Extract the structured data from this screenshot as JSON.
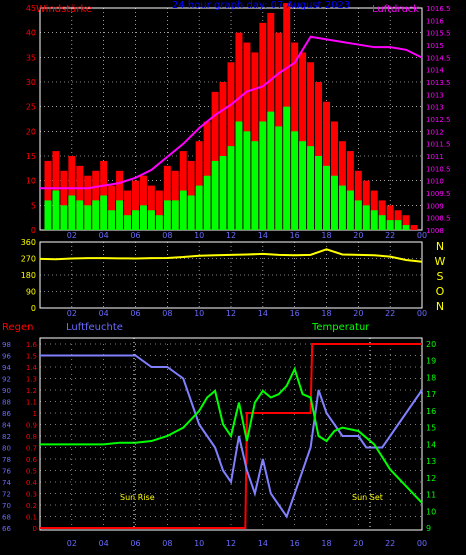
{
  "title": "24 hour graph day: 07 August 2023",
  "colors": {
    "background": "#000000",
    "wind_gust": "#ff0000",
    "wind_avg": "#00ff00",
    "pressure": "#ff00ff",
    "direction": "#ffff00",
    "rain": "#ff0000",
    "humidity": "#8080ff",
    "temperature": "#00ff00",
    "grid": "#ffffff",
    "ticks_left": "#6a6aff",
    "ticks_right_top": "#ff00ff",
    "ticks_right_bottom": "#00ff00",
    "compass": "#ffff00"
  },
  "top": {
    "left_label": "Windstärke",
    "right_label": "Luftdruck",
    "left_ticks": [
      "0",
      "5",
      "10",
      "15",
      "20",
      "25",
      "30",
      "35",
      "40",
      "45"
    ],
    "right_ticks": [
      "1008",
      "1008.5",
      "1009",
      "1009.5",
      "1010",
      "1010.5",
      "1011",
      "1011.5",
      "1012",
      "1012.5",
      "1013",
      "1013",
      "1013.5",
      "1014",
      "1014.5",
      "1015",
      "1015.5",
      "1016",
      "1016.5"
    ]
  },
  "mid": {
    "left_ticks": [
      "0",
      "90",
      "180",
      "270",
      "360"
    ],
    "compass": [
      "N",
      "W",
      "S",
      "O",
      "N"
    ]
  },
  "bottom": {
    "rain_label": "Regen",
    "humidity_label": "Luftfeuchte",
    "temp_label": "Temperatur",
    "hum_ticks": [
      "66",
      "68",
      "70",
      "72",
      "74",
      "76",
      "78",
      "80",
      "82",
      "84",
      "86",
      "88",
      "90",
      "92",
      "94",
      "96",
      "98"
    ],
    "rain_ticks": [
      "0",
      "0.1",
      "0.2",
      "0.3",
      "0.4",
      "0.5",
      "0.6",
      "0.7",
      "0.8",
      "0.9",
      "1",
      "1.1",
      "1.2",
      "1.3",
      "1.4",
      "1.5",
      "1.6"
    ],
    "temp_ticks": [
      "9",
      "10",
      "11",
      "12",
      "13",
      "14",
      "15",
      "16",
      "17",
      "18",
      "19",
      "20"
    ],
    "sunrise_label": "Sun Rise",
    "sunset_label": "Sun Set"
  },
  "x_ticks": [
    "02",
    "04",
    "06",
    "08",
    "10",
    "12",
    "14",
    "16",
    "18",
    "20",
    "22",
    "00"
  ],
  "chart_data": [
    {
      "type": "bar",
      "title": "24 hour graph day: 07 August 2023",
      "ylabel": "Windstärke",
      "y2label": "Luftdruck",
      "ylim": [
        0,
        45
      ],
      "y2lim": [
        1008,
        1016.5
      ],
      "xlim": [
        0,
        24
      ],
      "series": [
        {
          "name": "gust",
          "x": [
            0.5,
            1,
            1.5,
            2,
            2.5,
            3,
            3.5,
            4,
            4.5,
            5,
            5.5,
            6,
            6.5,
            7,
            7.5,
            8,
            8.5,
            9,
            9.5,
            10,
            10.5,
            11,
            11.5,
            12,
            12.5,
            13,
            13.5,
            14,
            14.5,
            15,
            15.5,
            16,
            16.5,
            17,
            17.5,
            18,
            18.5,
            19,
            19.5,
            20,
            20.5,
            21,
            21.5,
            22,
            22.5,
            23,
            23.5
          ],
          "values": [
            14,
            16,
            12,
            15,
            13,
            11,
            12,
            14,
            9,
            12,
            8,
            10,
            11,
            9,
            8,
            13,
            12,
            16,
            14,
            18,
            22,
            28,
            30,
            34,
            40,
            38,
            36,
            42,
            44,
            40,
            46,
            38,
            36,
            34,
            30,
            26,
            22,
            18,
            16,
            12,
            10,
            8,
            6,
            5,
            4,
            3,
            1
          ]
        },
        {
          "name": "avg",
          "x": [
            0.5,
            1,
            1.5,
            2,
            2.5,
            3,
            3.5,
            4,
            4.5,
            5,
            5.5,
            6,
            6.5,
            7,
            7.5,
            8,
            8.5,
            9,
            9.5,
            10,
            10.5,
            11,
            11.5,
            12,
            12.5,
            13,
            13.5,
            14,
            14.5,
            15,
            15.5,
            16,
            16.5,
            17,
            17.5,
            18,
            18.5,
            19,
            19.5,
            20,
            20.5,
            21,
            21.5,
            22,
            22.5,
            23,
            23.5
          ],
          "values": [
            6,
            8,
            5,
            7,
            6,
            5,
            6,
            7,
            4,
            6,
            3,
            4,
            5,
            4,
            3,
            6,
            6,
            8,
            7,
            9,
            11,
            14,
            15,
            17,
            22,
            20,
            18,
            22,
            24,
            21,
            25,
            20,
            18,
            17,
            15,
            13,
            11,
            9,
            8,
            6,
            5,
            4,
            3,
            2,
            2,
            1,
            0
          ]
        },
        {
          "name": "pressure",
          "axis": "right",
          "x": [
            0,
            1,
            2,
            3,
            4,
            5,
            6,
            7,
            8,
            9,
            10,
            11,
            12,
            13,
            14,
            15,
            16,
            17,
            18,
            19,
            20,
            21,
            22,
            23,
            24
          ],
          "values": [
            1009.6,
            1009.6,
            1009.6,
            1009.6,
            1009.7,
            1009.8,
            1010.0,
            1010.3,
            1010.8,
            1011.3,
            1011.9,
            1012.4,
            1012.8,
            1013.3,
            1013.5,
            1014.0,
            1014.4,
            1015.4,
            1015.3,
            1015.2,
            1015.1,
            1015.0,
            1015.0,
            1014.9,
            1014.6
          ]
        }
      ]
    },
    {
      "type": "line",
      "ylabel": "",
      "ylim": [
        0,
        360
      ],
      "xlim": [
        0,
        24
      ],
      "series": [
        {
          "name": "direction",
          "x": [
            0,
            1,
            2,
            3,
            4,
            5,
            6,
            7,
            8,
            9,
            10,
            11,
            12,
            13,
            14,
            15,
            16,
            17,
            18,
            19,
            20,
            21,
            22,
            23,
            24
          ],
          "values": [
            268,
            266,
            270,
            272,
            272,
            271,
            270,
            272,
            273,
            278,
            285,
            288,
            290,
            292,
            295,
            290,
            288,
            290,
            320,
            292,
            290,
            288,
            280,
            262,
            252
          ]
        }
      ]
    },
    {
      "type": "line",
      "ylabel": "Luftfeuchte",
      "y2label": "Temperatur",
      "ylim": [
        66,
        98
      ],
      "y2lim": [
        9,
        20
      ],
      "rain_lim": [
        0,
        1.6
      ],
      "xlim": [
        0,
        24
      ],
      "series": [
        {
          "name": "humidity",
          "x": [
            0,
            1,
            2,
            3,
            4,
            5,
            6,
            6.5,
            7,
            8,
            8.5,
            9,
            9.5,
            10,
            10.5,
            11,
            11.5,
            12,
            12.5,
            13,
            13.5,
            14,
            14.5,
            15,
            15.5,
            16,
            16.5,
            17,
            17.5,
            18,
            18.5,
            19,
            20,
            20.5,
            21,
            21.5,
            22,
            23,
            24
          ],
          "values": [
            96,
            96,
            96,
            96,
            96,
            96,
            96,
            95,
            94,
            94,
            93,
            92,
            88,
            84,
            82,
            80,
            76,
            74,
            82,
            76,
            72,
            78,
            72,
            70,
            68,
            72,
            76,
            80,
            90,
            86,
            84,
            82,
            82,
            80,
            80,
            80,
            82,
            86,
            90
          ]
        },
        {
          "name": "temperature",
          "x": [
            0,
            1,
            2,
            3,
            4,
            5,
            6,
            7,
            8,
            9,
            10,
            10.5,
            11,
            11.5,
            12,
            12.5,
            13,
            13.5,
            14,
            14.5,
            15,
            15.5,
            16,
            16.5,
            17,
            17.5,
            18,
            18.5,
            19,
            20,
            21,
            22,
            23,
            24
          ],
          "values": [
            14,
            14,
            14,
            14,
            14,
            14.1,
            14.1,
            14.2,
            14.5,
            15,
            16,
            16.8,
            17.2,
            15.2,
            14.5,
            16.5,
            14.2,
            16.5,
            17.2,
            16.8,
            17,
            17.5,
            18.5,
            17,
            16.8,
            14.5,
            14.2,
            14.8,
            15,
            14.8,
            14,
            12.5,
            11.5,
            10.5
          ]
        },
        {
          "name": "rain",
          "x": [
            0,
            12.9,
            13.0,
            17.0,
            17.1,
            24
          ],
          "values": [
            0,
            0,
            1.0,
            1.0,
            1.6,
            1.6
          ]
        }
      ]
    }
  ]
}
